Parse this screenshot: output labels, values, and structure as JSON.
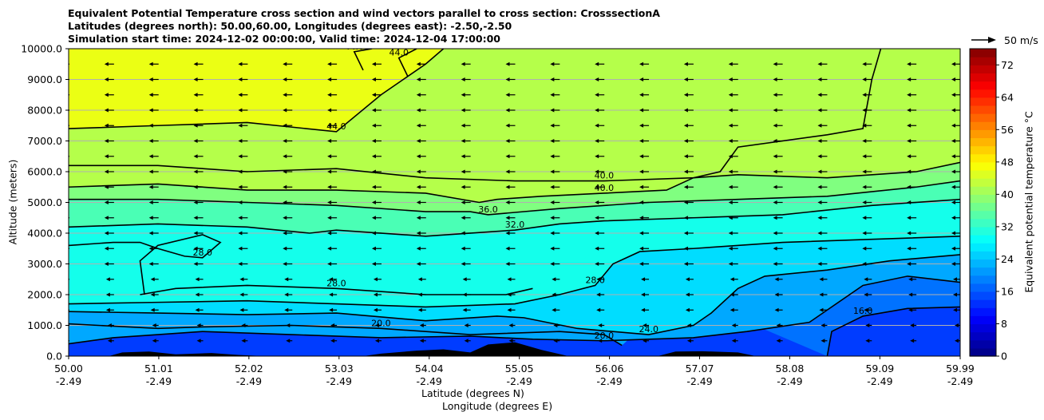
{
  "chart_data": {
    "type": "contour",
    "title_lines": [
      "Equivalent Potential Temperature cross section and wind vectors parallel to cross section: CrosssectionA",
      "Latitudes (degrees north): 50.00,60.00, Longitudes (degrees east): -2.50,-2.50",
      "Simulation start time: 2024-12-02 00:00:00, Valid time: 2024-12-04 17:00:00"
    ],
    "xlabel": "Latitude (degrees N)",
    "xlabel2": "Longitude (degrees E)",
    "ylabel": "Altitude (meters)",
    "xlim": [
      50.0,
      59.99
    ],
    "ylim": [
      0,
      10000
    ],
    "x_ticks": [
      {
        "lat": "50.00",
        "lon": "-2.49"
      },
      {
        "lat": "51.01",
        "lon": "-2.49"
      },
      {
        "lat": "52.02",
        "lon": "-2.49"
      },
      {
        "lat": "53.03",
        "lon": "-2.49"
      },
      {
        "lat": "54.04",
        "lon": "-2.49"
      },
      {
        "lat": "55.05",
        "lon": "-2.49"
      },
      {
        "lat": "56.06",
        "lon": "-2.49"
      },
      {
        "lat": "57.07",
        "lon": "-2.49"
      },
      {
        "lat": "58.08",
        "lon": "-2.49"
      },
      {
        "lat": "59.09",
        "lon": "-2.49"
      },
      {
        "lat": "59.99",
        "lon": "-2.49"
      }
    ],
    "y_ticks": [
      "0.0",
      "1000.0",
      "2000.0",
      "3000.0",
      "4000.0",
      "5000.0",
      "6000.0",
      "7000.0",
      "8000.0",
      "9000.0",
      "10000.0"
    ],
    "colorbar": {
      "label": "Equivalent potential temperature $^\\circ$C",
      "ticks": [
        "0",
        "8",
        "16",
        "24",
        "32",
        "40",
        "48",
        "56",
        "64",
        "72"
      ],
      "range": [
        0,
        76
      ]
    },
    "wind_reference": "50 m/s",
    "contours": [
      {
        "level": 16,
        "label": "16.0",
        "points": [
          [
            58.5,
            0
          ],
          [
            58.55,
            800
          ],
          [
            58.9,
            1300
          ],
          [
            59.4,
            1550
          ],
          [
            59.99,
            1600
          ]
        ]
      },
      {
        "level": 20,
        "label": "20.0",
        "points": [
          [
            50.0,
            400
          ],
          [
            50.5,
            600
          ],
          [
            51.5,
            800
          ],
          [
            52.5,
            700
          ],
          [
            53.5,
            600
          ],
          [
            54.5,
            650
          ],
          [
            55.2,
            550
          ],
          [
            56.0,
            500
          ],
          [
            57.0,
            600
          ],
          [
            57.6,
            800
          ],
          [
            58.3,
            1100
          ],
          [
            58.5,
            1500
          ],
          [
            58.9,
            2300
          ],
          [
            59.4,
            2600
          ],
          [
            59.99,
            2400
          ]
        ]
      },
      {
        "level": 20,
        "label": "20.0",
        "points": [
          [
            50.0,
            1050
          ],
          [
            51.0,
            900
          ],
          [
            51.5,
            950
          ],
          [
            52.5,
            1000
          ],
          [
            53.5,
            900
          ],
          [
            54.5,
            700
          ],
          [
            55.5,
            800
          ],
          [
            56.0,
            700
          ],
          [
            56.2,
            350
          ]
        ]
      },
      {
        "level": 24,
        "label": "24.0",
        "points": [
          [
            50.0,
            1450
          ],
          [
            51.0,
            1400
          ],
          [
            52.0,
            1350
          ],
          [
            53.0,
            1400
          ],
          [
            54.0,
            1150
          ],
          [
            54.8,
            1300
          ],
          [
            55.1,
            1250
          ],
          [
            55.7,
            900
          ],
          [
            56.5,
            700
          ],
          [
            57.0,
            1000
          ],
          [
            57.2,
            1400
          ],
          [
            57.5,
            2200
          ],
          [
            57.8,
            2600
          ],
          [
            58.5,
            2800
          ],
          [
            59.2,
            3100
          ],
          [
            59.99,
            3300
          ]
        ]
      },
      {
        "level": 28,
        "label": "28.0",
        "points": [
          [
            50.0,
            1700
          ],
          [
            51.0,
            1750
          ],
          [
            52.0,
            1800
          ],
          [
            53.0,
            1700
          ],
          [
            54.0,
            1600
          ],
          [
            55.0,
            1700
          ],
          [
            55.5,
            2000
          ],
          [
            55.9,
            2300
          ],
          [
            56.1,
            3000
          ],
          [
            56.4,
            3400
          ],
          [
            57.0,
            3500
          ],
          [
            58.0,
            3700
          ],
          [
            59.0,
            3800
          ],
          [
            59.99,
            3900
          ]
        ]
      },
      {
        "level": 28,
        "label": "28.0",
        "points": [
          [
            50.8,
            2000
          ],
          [
            51.2,
            2200
          ],
          [
            52.0,
            2300
          ],
          [
            53.0,
            2200
          ],
          [
            54.0,
            2000
          ],
          [
            54.9,
            2000
          ],
          [
            55.2,
            2200
          ]
        ]
      },
      {
        "level": 28,
        "label": "28.0",
        "points": [
          [
            50.0,
            3600
          ],
          [
            50.5,
            3700
          ],
          [
            50.8,
            3700
          ],
          [
            51.0,
            3500
          ],
          [
            51.3,
            3250
          ],
          [
            51.5,
            3200
          ],
          [
            51.7,
            3700
          ],
          [
            51.5,
            3950
          ],
          [
            51.0,
            3600
          ],
          [
            50.8,
            3100
          ],
          [
            50.85,
            2000
          ]
        ]
      },
      {
        "level": 32,
        "label": "32.0",
        "points": [
          [
            50.0,
            4200
          ],
          [
            51.0,
            4300
          ],
          [
            52.0,
            4200
          ],
          [
            52.7,
            4000
          ],
          [
            53.0,
            4100
          ],
          [
            54.0,
            3900
          ],
          [
            55.0,
            4100
          ],
          [
            55.5,
            4300
          ],
          [
            56.0,
            4400
          ],
          [
            57.0,
            4500
          ],
          [
            58.0,
            4600
          ],
          [
            59.0,
            4900
          ],
          [
            59.99,
            5100
          ]
        ]
      },
      {
        "level": 36,
        "label": "36.0",
        "points": [
          [
            50.0,
            5100
          ],
          [
            51.0,
            5100
          ],
          [
            52.0,
            5000
          ],
          [
            53.0,
            4900
          ],
          [
            54.0,
            4700
          ],
          [
            54.5,
            4700
          ],
          [
            54.7,
            4600
          ],
          [
            55.5,
            4800
          ],
          [
            56.5,
            5000
          ],
          [
            57.5,
            5100
          ],
          [
            58.5,
            5200
          ],
          [
            59.5,
            5500
          ],
          [
            59.99,
            5700
          ]
        ]
      },
      {
        "level": 40,
        "label": "40.0",
        "points": [
          [
            50.0,
            5500
          ],
          [
            51.0,
            5600
          ],
          [
            52.0,
            5400
          ],
          [
            53.0,
            5400
          ],
          [
            54.0,
            5300
          ],
          [
            54.6,
            5000
          ],
          [
            54.8,
            5100
          ],
          [
            55.3,
            5200
          ],
          [
            56.0,
            5300
          ],
          [
            56.7,
            5400
          ],
          [
            57.0,
            5800
          ],
          [
            57.3,
            6000
          ],
          [
            57.5,
            6800
          ],
          [
            58.5,
            7200
          ],
          [
            58.9,
            7400
          ],
          [
            59.0,
            9000
          ],
          [
            59.1,
            10000
          ]
        ]
      },
      {
        "level": 40,
        "label": "40.0",
        "points": [
          [
            50.0,
            6200
          ],
          [
            51.0,
            6200
          ],
          [
            52.0,
            6000
          ],
          [
            53.0,
            6100
          ],
          [
            54.0,
            5800
          ],
          [
            55.0,
            5700
          ],
          [
            56.0,
            5700
          ],
          [
            57.0,
            5800
          ],
          [
            57.5,
            5900
          ],
          [
            58.5,
            5800
          ],
          [
            59.5,
            6000
          ],
          [
            59.99,
            6300
          ]
        ]
      },
      {
        "level": 44,
        "label": "44.0",
        "points": [
          [
            50.0,
            7400
          ],
          [
            51.0,
            7500
          ],
          [
            52.0,
            7600
          ],
          [
            53.0,
            7300
          ],
          [
            53.5,
            8500
          ],
          [
            54.0,
            9500
          ],
          [
            54.2,
            10000
          ]
        ]
      },
      {
        "level": 44,
        "label": "44.0",
        "points": [
          [
            53.3,
            9300
          ],
          [
            53.2,
            9900
          ],
          [
            53.4,
            10000
          ]
        ]
      },
      {
        "level": 44,
        "label": "44.0",
        "points": [
          [
            53.8,
            9100
          ],
          [
            53.7,
            9700
          ],
          [
            53.9,
            10000
          ]
        ]
      }
    ],
    "terrain": [
      [
        50.0,
        0
      ],
      [
        50.45,
        0
      ],
      [
        50.6,
        120
      ],
      [
        50.9,
        150
      ],
      [
        51.2,
        60
      ],
      [
        51.6,
        100
      ],
      [
        51.9,
        40
      ],
      [
        52.2,
        0
      ],
      [
        53.3,
        0
      ],
      [
        53.5,
        80
      ],
      [
        53.9,
        180
      ],
      [
        54.2,
        220
      ],
      [
        54.5,
        120
      ],
      [
        54.7,
        380
      ],
      [
        55.0,
        450
      ],
      [
        55.3,
        200
      ],
      [
        55.6,
        0
      ],
      [
        56.6,
        0
      ],
      [
        56.8,
        150
      ],
      [
        57.1,
        160
      ],
      [
        57.5,
        120
      ],
      [
        57.7,
        0
      ],
      [
        59.99,
        0
      ]
    ]
  }
}
